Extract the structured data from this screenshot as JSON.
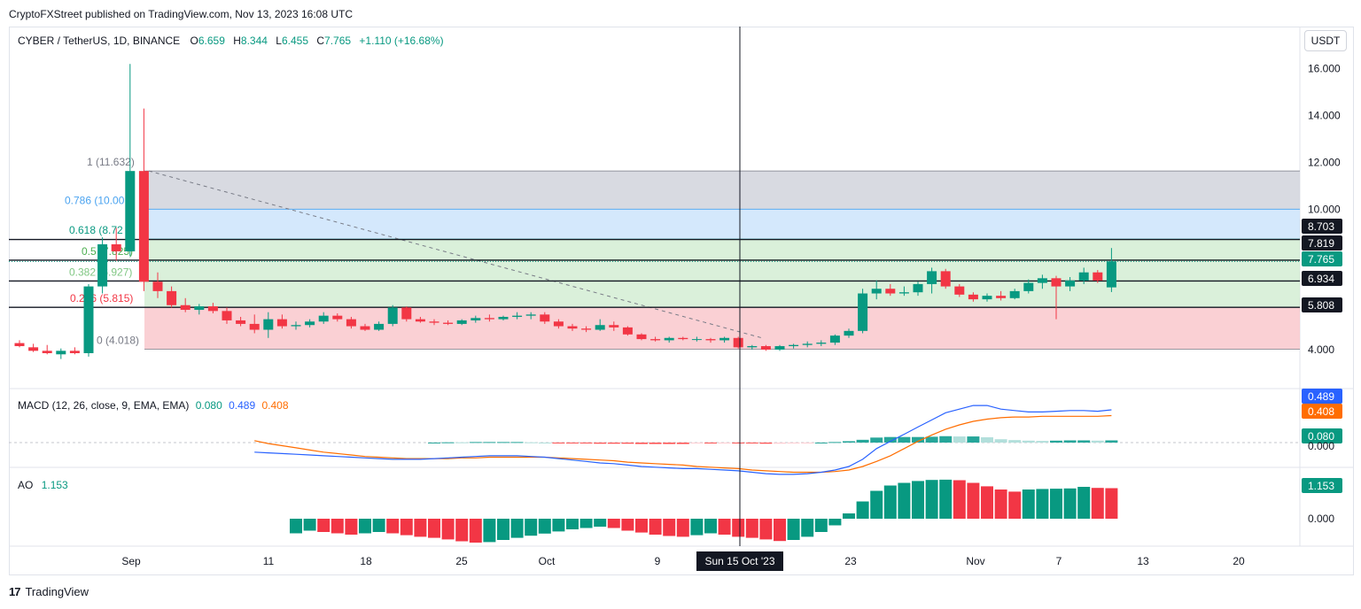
{
  "publisher": "CryptoFXStreet published on TradingView.com, Nov 13, 2023 16:08 UTC",
  "footer": {
    "brand": "TradingView",
    "logo_text": "17"
  },
  "currency_button": "USDT",
  "symbol_legend": {
    "symbol": "CYBER / TetherUS, 1D, BINANCE",
    "o_label": "O",
    "o": "6.659",
    "h_label": "H",
    "h": "8.344",
    "l_label": "L",
    "l": "6.455",
    "c_label": "C",
    "c": "7.765",
    "change": "+1.110 (+16.68%)"
  },
  "macd_legend": {
    "label": "MACD (12, 26, close, 9, EMA, EMA)",
    "hist": "0.080",
    "macd": "0.489",
    "signal": "0.408"
  },
  "ao_legend": {
    "label": "AO",
    "value": "1.153"
  },
  "colors": {
    "up": "#089981",
    "down": "#f23645",
    "macd": "#2962ff",
    "signal": "#ff6d00",
    "fib_gray": "#d1d4dc",
    "fib_blue": "#cde4fb",
    "fib_green": "#d4edd4",
    "fib_red": "#f9c8cc"
  },
  "price_axis": {
    "ticks": [
      "16.000",
      "14.000",
      "12.000",
      "10.000",
      "4.000"
    ]
  },
  "price_tags": [
    {
      "text": "8.703",
      "style": "dark"
    },
    {
      "text": "7.819",
      "style": "dark"
    },
    {
      "text": "7.765",
      "style": "green"
    },
    {
      "text": "6.934",
      "style": "dark"
    },
    {
      "text": "5.808",
      "style": "dark"
    }
  ],
  "macd_tags": [
    {
      "text": "0.489",
      "style": "blue"
    },
    {
      "text": "0.408",
      "style": "orange"
    },
    {
      "text": "0.080",
      "style": "green"
    }
  ],
  "macd_axis_partial": "0.000",
  "ao_tags": [
    {
      "text": "1.153",
      "style": "green"
    }
  ],
  "ao_axis": "0.000",
  "fib_levels": [
    {
      "label": "1 (11.632)",
      "level": 11.632,
      "color": "#787b86"
    },
    {
      "label": "0.786 (10.00",
      "level": 10.0,
      "color": "#4aa3f0"
    },
    {
      "label": "0.618 (8.72",
      "level": 8.72,
      "color": "#089981"
    },
    {
      "label": "0.5 (7.825)",
      "level": 7.825,
      "color": "#4caf50"
    },
    {
      "label": "0.382 (6.927)",
      "level": 6.927,
      "color": "#81c784"
    },
    {
      "label": "0.236 (5.815)",
      "level": 5.815,
      "color": "#f23645"
    },
    {
      "label": "0 (4.018)",
      "level": 4.018,
      "color": "#787b86"
    }
  ],
  "time_axis": {
    "labels": [
      "Sep",
      "11",
      "18",
      "25",
      "Oct",
      "9",
      "23",
      "Nov",
      "7",
      "13",
      "20"
    ],
    "crosshair_label": "Sun 15 Oct '23"
  },
  "chart_data": {
    "type": "candlestick",
    "title": "CYBER / TetherUS, 1D, BINANCE",
    "xlabel": "",
    "ylabel": "",
    "start_date": "2023-08-27",
    "ylim": [
      3.3,
      16.8
    ],
    "candles": [
      [
        4.28,
        4.4,
        4.1,
        4.15
      ],
      [
        4.1,
        4.25,
        3.9,
        3.95
      ],
      [
        3.95,
        4.2,
        3.8,
        3.85
      ],
      [
        3.8,
        4.05,
        3.6,
        3.95
      ],
      [
        3.95,
        4.1,
        3.8,
        3.85
      ],
      [
        3.85,
        6.8,
        3.7,
        6.7
      ],
      [
        6.7,
        8.8,
        6.4,
        8.5
      ],
      [
        8.5,
        9.2,
        7.8,
        8.2
      ],
      [
        8.2,
        16.2,
        8.0,
        11.63
      ],
      [
        11.63,
        14.3,
        6.5,
        6.9
      ],
      [
        6.9,
        7.3,
        6.2,
        6.5
      ],
      [
        6.5,
        6.7,
        5.8,
        5.9
      ],
      [
        5.9,
        6.2,
        5.6,
        5.7
      ],
      [
        5.7,
        5.95,
        5.5,
        5.85
      ],
      [
        5.85,
        6.0,
        5.55,
        5.65
      ],
      [
        5.65,
        5.8,
        5.1,
        5.25
      ],
      [
        5.25,
        5.4,
        5.0,
        5.1
      ],
      [
        5.1,
        5.5,
        4.7,
        4.85
      ],
      [
        4.85,
        5.6,
        4.5,
        5.3
      ],
      [
        5.3,
        5.5,
        4.9,
        5.0
      ],
      [
        5.0,
        5.2,
        4.85,
        5.05
      ],
      [
        5.05,
        5.3,
        4.95,
        5.2
      ],
      [
        5.2,
        5.6,
        5.1,
        5.45
      ],
      [
        5.45,
        5.55,
        5.2,
        5.3
      ],
      [
        5.3,
        5.4,
        4.9,
        5.0
      ],
      [
        5.0,
        5.1,
        4.8,
        4.85
      ],
      [
        4.85,
        5.2,
        4.8,
        5.1
      ],
      [
        5.1,
        5.9,
        5.0,
        5.8
      ],
      [
        5.8,
        5.85,
        5.2,
        5.3
      ],
      [
        5.3,
        5.4,
        5.15,
        5.2
      ],
      [
        5.2,
        5.3,
        5.05,
        5.15
      ],
      [
        5.15,
        5.25,
        5.05,
        5.1
      ],
      [
        5.1,
        5.3,
        5.05,
        5.25
      ],
      [
        5.25,
        5.45,
        5.15,
        5.35
      ],
      [
        5.35,
        5.5,
        5.2,
        5.3
      ],
      [
        5.3,
        5.45,
        5.25,
        5.4
      ],
      [
        5.4,
        5.6,
        5.3,
        5.45
      ],
      [
        5.45,
        5.6,
        5.3,
        5.5
      ],
      [
        5.5,
        5.6,
        5.1,
        5.2
      ],
      [
        5.2,
        5.3,
        4.9,
        5.0
      ],
      [
        5.0,
        5.1,
        4.8,
        4.9
      ],
      [
        4.9,
        5.0,
        4.75,
        4.85
      ],
      [
        4.85,
        5.3,
        4.8,
        5.05
      ],
      [
        5.05,
        5.2,
        4.8,
        4.95
      ],
      [
        4.95,
        5.0,
        4.6,
        4.65
      ],
      [
        4.65,
        4.7,
        4.4,
        4.45
      ],
      [
        4.45,
        4.55,
        4.35,
        4.4
      ],
      [
        4.4,
        4.55,
        4.3,
        4.5
      ],
      [
        4.5,
        4.55,
        4.4,
        4.45
      ],
      [
        4.45,
        4.55,
        4.35,
        4.45
      ],
      [
        4.45,
        4.5,
        4.3,
        4.4
      ],
      [
        4.4,
        4.55,
        4.3,
        4.5
      ],
      [
        4.5,
        4.55,
        4.05,
        4.1
      ],
      [
        4.1,
        4.2,
        4.0,
        4.15
      ],
      [
        4.15,
        4.2,
        3.95,
        4.0
      ],
      [
        4.0,
        4.2,
        3.95,
        4.15
      ],
      [
        4.15,
        4.25,
        4.05,
        4.2
      ],
      [
        4.2,
        4.35,
        4.1,
        4.25
      ],
      [
        4.25,
        4.4,
        4.15,
        4.3
      ],
      [
        4.3,
        4.65,
        4.2,
        4.6
      ],
      [
        4.6,
        4.9,
        4.5,
        4.8
      ],
      [
        4.8,
        6.6,
        4.7,
        6.4
      ],
      [
        6.4,
        6.95,
        6.15,
        6.6
      ],
      [
        6.6,
        6.8,
        6.3,
        6.4
      ],
      [
        6.4,
        6.7,
        6.3,
        6.45
      ],
      [
        6.45,
        6.9,
        6.3,
        6.8
      ],
      [
        6.8,
        7.5,
        6.4,
        7.35
      ],
      [
        7.35,
        7.45,
        6.6,
        6.7
      ],
      [
        6.7,
        6.8,
        6.25,
        6.35
      ],
      [
        6.35,
        6.45,
        6.05,
        6.15
      ],
      [
        6.15,
        6.4,
        6.05,
        6.3
      ],
      [
        6.3,
        6.5,
        6.1,
        6.2
      ],
      [
        6.2,
        6.6,
        6.15,
        6.5
      ],
      [
        6.5,
        7.0,
        6.4,
        6.85
      ],
      [
        6.85,
        7.2,
        6.6,
        7.05
      ],
      [
        7.05,
        7.15,
        5.3,
        6.7
      ],
      [
        6.7,
        7.1,
        6.5,
        6.95
      ],
      [
        6.95,
        7.5,
        6.8,
        7.3
      ],
      [
        7.3,
        7.4,
        6.85,
        6.95
      ],
      [
        6.66,
        8.34,
        6.46,
        7.77
      ]
    ],
    "macd_line": [
      0.13,
      0.12,
      0.1,
      0.08,
      0.07,
      0.06,
      0.04,
      0.02,
      0.0,
      -0.01,
      -0.02,
      -0.03,
      -0.04,
      -0.05,
      -0.07,
      -0.08,
      -0.09,
      -0.1,
      -0.11,
      -0.12,
      -0.13,
      -0.14,
      -0.15,
      -0.16,
      -0.17,
      -0.18,
      -0.19,
      -0.2,
      -0.2,
      -0.2,
      -0.19,
      -0.18,
      -0.17,
      -0.16,
      -0.15,
      -0.15,
      -0.15,
      -0.16,
      -0.17,
      -0.19,
      -0.21,
      -0.23,
      -0.25,
      -0.26,
      -0.28,
      -0.3,
      -0.31,
      -0.32,
      -0.33,
      -0.33,
      -0.34,
      -0.35,
      -0.36,
      -0.38,
      -0.4,
      -0.41,
      -0.41,
      -0.4,
      -0.38,
      -0.35,
      -0.3,
      -0.2,
      -0.05,
      0.05,
      0.15,
      0.25,
      0.35,
      0.45,
      0.5,
      0.55,
      0.55,
      0.5,
      0.48,
      0.46,
      0.46,
      0.47,
      0.48,
      0.48,
      0.47,
      0.49
    ],
    "signal_line": [
      0.7,
      0.66,
      0.62,
      0.58,
      0.55,
      0.52,
      0.48,
      0.45,
      0.42,
      0.38,
      0.34,
      0.3,
      0.26,
      0.22,
      0.18,
      0.14,
      0.1,
      0.06,
      0.02,
      -0.01,
      -0.04,
      -0.07,
      -0.1,
      -0.12,
      -0.14,
      -0.16,
      -0.17,
      -0.18,
      -0.19,
      -0.19,
      -0.19,
      -0.19,
      -0.18,
      -0.18,
      -0.17,
      -0.17,
      -0.17,
      -0.17,
      -0.17,
      -0.18,
      -0.19,
      -0.2,
      -0.21,
      -0.22,
      -0.24,
      -0.25,
      -0.26,
      -0.27,
      -0.28,
      -0.3,
      -0.31,
      -0.32,
      -0.33,
      -0.35,
      -0.36,
      -0.37,
      -0.38,
      -0.38,
      -0.38,
      -0.37,
      -0.35,
      -0.3,
      -0.23,
      -0.15,
      -0.05,
      0.05,
      0.14,
      0.22,
      0.28,
      0.33,
      0.36,
      0.38,
      0.39,
      0.39,
      0.4,
      0.4,
      0.4,
      0.4,
      0.4,
      0.41
    ],
    "macd_hist_start": 30,
    "ao": [
      -0.55,
      -0.45,
      -0.5,
      -0.55,
      -0.6,
      -0.55,
      -0.5,
      -0.55,
      -0.62,
      -0.68,
      -0.72,
      -0.78,
      -0.85,
      -0.9,
      -0.88,
      -0.8,
      -0.72,
      -0.64,
      -0.56,
      -0.48,
      -0.4,
      -0.35,
      -0.3,
      -0.35,
      -0.45,
      -0.52,
      -0.6,
      -0.65,
      -0.68,
      -0.62,
      -0.55,
      -0.6,
      -0.68,
      -0.72,
      -0.78,
      -0.84,
      -0.8,
      -0.68,
      -0.5,
      -0.25,
      0.2,
      0.65,
      1.05,
      1.25,
      1.35,
      1.42,
      1.46,
      1.47,
      1.45,
      1.35,
      1.22,
      1.1,
      1.02,
      1.1,
      1.12,
      1.13,
      1.14,
      1.2,
      1.16,
      1.15
    ],
    "ao_start": 20
  }
}
